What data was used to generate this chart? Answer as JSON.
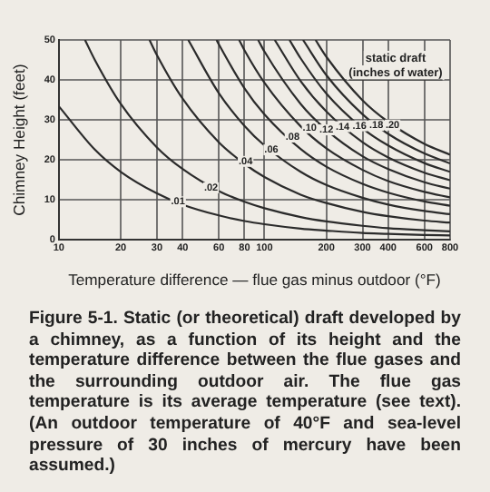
{
  "chart_data": {
    "type": "line",
    "xlabel": "Temperature difference — flue gas minus outdoor (°F)",
    "ylabel": "Chimney Height (feet)",
    "legend_title": "static draft\n(inches of water)",
    "log": "x",
    "xlim": [
      10,
      800
    ],
    "xticks": [
      10,
      20,
      30,
      40,
      60,
      80,
      100,
      200,
      300,
      400,
      600,
      800
    ],
    "ylim": [
      0,
      50
    ],
    "yticks": [
      0,
      10,
      20,
      30,
      40,
      50
    ],
    "grid": true,
    "legend": false,
    "marker": "none",
    "line_style": "solid",
    "series": [
      {
        "color": "#2b2b2b",
        "x": [
          10,
          15,
          20,
          30,
          40,
          60,
          80,
          100,
          150,
          200,
          300,
          400,
          600,
          800
        ],
        "values": [
          33.4,
          22.5,
          17,
          11.6,
          8.8,
          6.1,
          4.7,
          3.9,
          2.8,
          2.3,
          1.7,
          1.5,
          1.2,
          1.1
        ]
      },
      {
        "color": "#2b2b2b",
        "x": [
          13.4,
          15,
          20,
          30,
          40,
          60,
          80,
          100,
          150,
          200,
          300,
          400,
          600,
          800
        ],
        "values": [
          50,
          44.9,
          34,
          23.1,
          17.7,
          12.2,
          9.5,
          7.9,
          5.7,
          4.6,
          3.5,
          2.9,
          2.4,
          2.1
        ]
      },
      {
        "color": "#2b2b2b",
        "x": [
          27.6,
          30,
          40,
          60,
          80,
          100,
          150,
          200,
          300,
          400,
          600,
          800
        ],
        "values": [
          50,
          46.2,
          35.3,
          24.4,
          19,
          15.7,
          11.3,
          9.2,
          7,
          5.9,
          4.8,
          4.3
        ]
      },
      {
        "color": "#2b2b2b",
        "x": [
          42.6,
          60,
          80,
          100,
          150,
          200,
          300,
          400,
          600,
          800
        ],
        "values": [
          50,
          36.7,
          28.5,
          23.6,
          17,
          13.7,
          10.5,
          8.8,
          7.2,
          6.4
        ]
      },
      {
        "color": "#2b2b2b",
        "x": [
          58.5,
          60,
          80,
          100,
          150,
          200,
          300,
          400,
          600,
          800
        ],
        "values": [
          50,
          48.9,
          37.9,
          31.4,
          22.7,
          18.3,
          14,
          11.8,
          9.6,
          8.5
        ]
      },
      {
        "color": "#2b2b2b",
        "x": [
          75.3,
          80,
          100,
          150,
          200,
          300,
          400,
          600,
          800
        ],
        "values": [
          50,
          47.4,
          39.3,
          28.4,
          22.9,
          17.5,
          14.7,
          12,
          10.6
        ]
      },
      {
        "color": "#2b2b2b",
        "x": [
          93.2,
          100,
          150,
          200,
          300,
          400,
          600,
          800
        ],
        "values": [
          50,
          47.1,
          34,
          27.5,
          20.9,
          17.7,
          14.4,
          12.8
        ]
      },
      {
        "color": "#2b2b2b",
        "x": [
          112.2,
          150,
          200,
          300,
          400,
          600,
          800
        ],
        "values": [
          50,
          39.7,
          32.1,
          24.4,
          20.6,
          16.8,
          14.9
        ]
      },
      {
        "color": "#2b2b2b",
        "x": [
          132.4,
          150,
          200,
          300,
          400,
          600,
          800
        ],
        "values": [
          50,
          45.4,
          36.6,
          27.9,
          23.6,
          19.2,
          17
        ]
      },
      {
        "color": "#2b2b2b",
        "x": [
          154.1,
          200,
          300,
          400,
          600,
          800
        ],
        "values": [
          50,
          41.2,
          31.4,
          26.5,
          21.6,
          19.1
        ]
      },
      {
        "color": "#2b2b2b",
        "x": [
          177.3,
          200,
          300,
          400,
          600,
          800
        ],
        "values": [
          50,
          45.8,
          34.9,
          29.5,
          24,
          21.3
        ]
      }
    ],
    "annotations": [
      {
        "text": ".01",
        "x": 38,
        "y": 9.5
      },
      {
        "text": ".02",
        "x": 55,
        "y": 13
      },
      {
        "text": ".04",
        "x": 81,
        "y": 19.6
      },
      {
        "text": ".06",
        "x": 108,
        "y": 22.5
      },
      {
        "text": ".08",
        "x": 137,
        "y": 25.7
      },
      {
        "text": ".10",
        "x": 166,
        "y": 28
      },
      {
        "text": ".12",
        "x": 200,
        "y": 27.5
      },
      {
        "text": ".14",
        "x": 240,
        "y": 28.3
      },
      {
        "text": ".16",
        "x": 290,
        "y": 28.5
      },
      {
        "text": ".18",
        "x": 350,
        "y": 28.6
      },
      {
        "text": ".20",
        "x": 420,
        "y": 28.7
      },
      "Figure 5-1. Static (or theoretical) draft developed by a chimney, as a function of its height and the temperature difference between the flue gases and the surrounding outdoor air. The flue gas temperature is its average temperature (see text). (An outdoor temperature of 40°F and sea-level pressure of 30 inches of mercury have been assumed.)"
    ]
  }
}
